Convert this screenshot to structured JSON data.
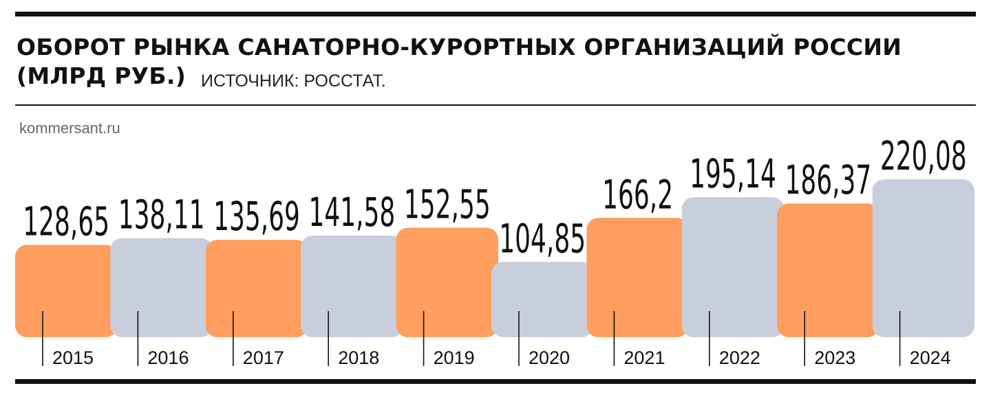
{
  "header": {
    "title_line1": "ОБОРОТ РЫНКА САНАТОРНО-КУРОРТНЫХ ОРГАНИЗАЦИЙ РОССИИ",
    "title_line2": "(МЛРД РУБ.)",
    "source": "ИСТОЧНИК: РОССТАТ."
  },
  "watermark": "kommersant.ru",
  "colors": {
    "orange": "#FF9E5E",
    "gray": "#C9CEDC",
    "text": "#111111"
  },
  "chart_data": {
    "type": "bar",
    "title": "ОБОРОТ РЫНКА САНАТОРНО-КУРОРТНЫХ ОРГАНИЗАЦИЙ РОССИИ (МЛРД РУБ.)",
    "categories": [
      "2015",
      "2016",
      "2017",
      "2018",
      "2019",
      "2020",
      "2021",
      "2022",
      "2023",
      "2024"
    ],
    "values": [
      128.65,
      138.11,
      135.69,
      141.58,
      152.55,
      104.85,
      166.2,
      195.14,
      186.37,
      220.08
    ],
    "value_labels": [
      "128,65",
      "138,11",
      "135,69",
      "141,58",
      "152,55",
      "104,85",
      "166,2",
      "195,14",
      "186,37",
      "220,08"
    ],
    "bar_colors": [
      "orange",
      "gray",
      "orange",
      "gray",
      "orange",
      "gray",
      "orange",
      "gray",
      "orange",
      "gray"
    ],
    "xlabel": "",
    "ylabel": "",
    "grid": false,
    "legend": "none"
  }
}
